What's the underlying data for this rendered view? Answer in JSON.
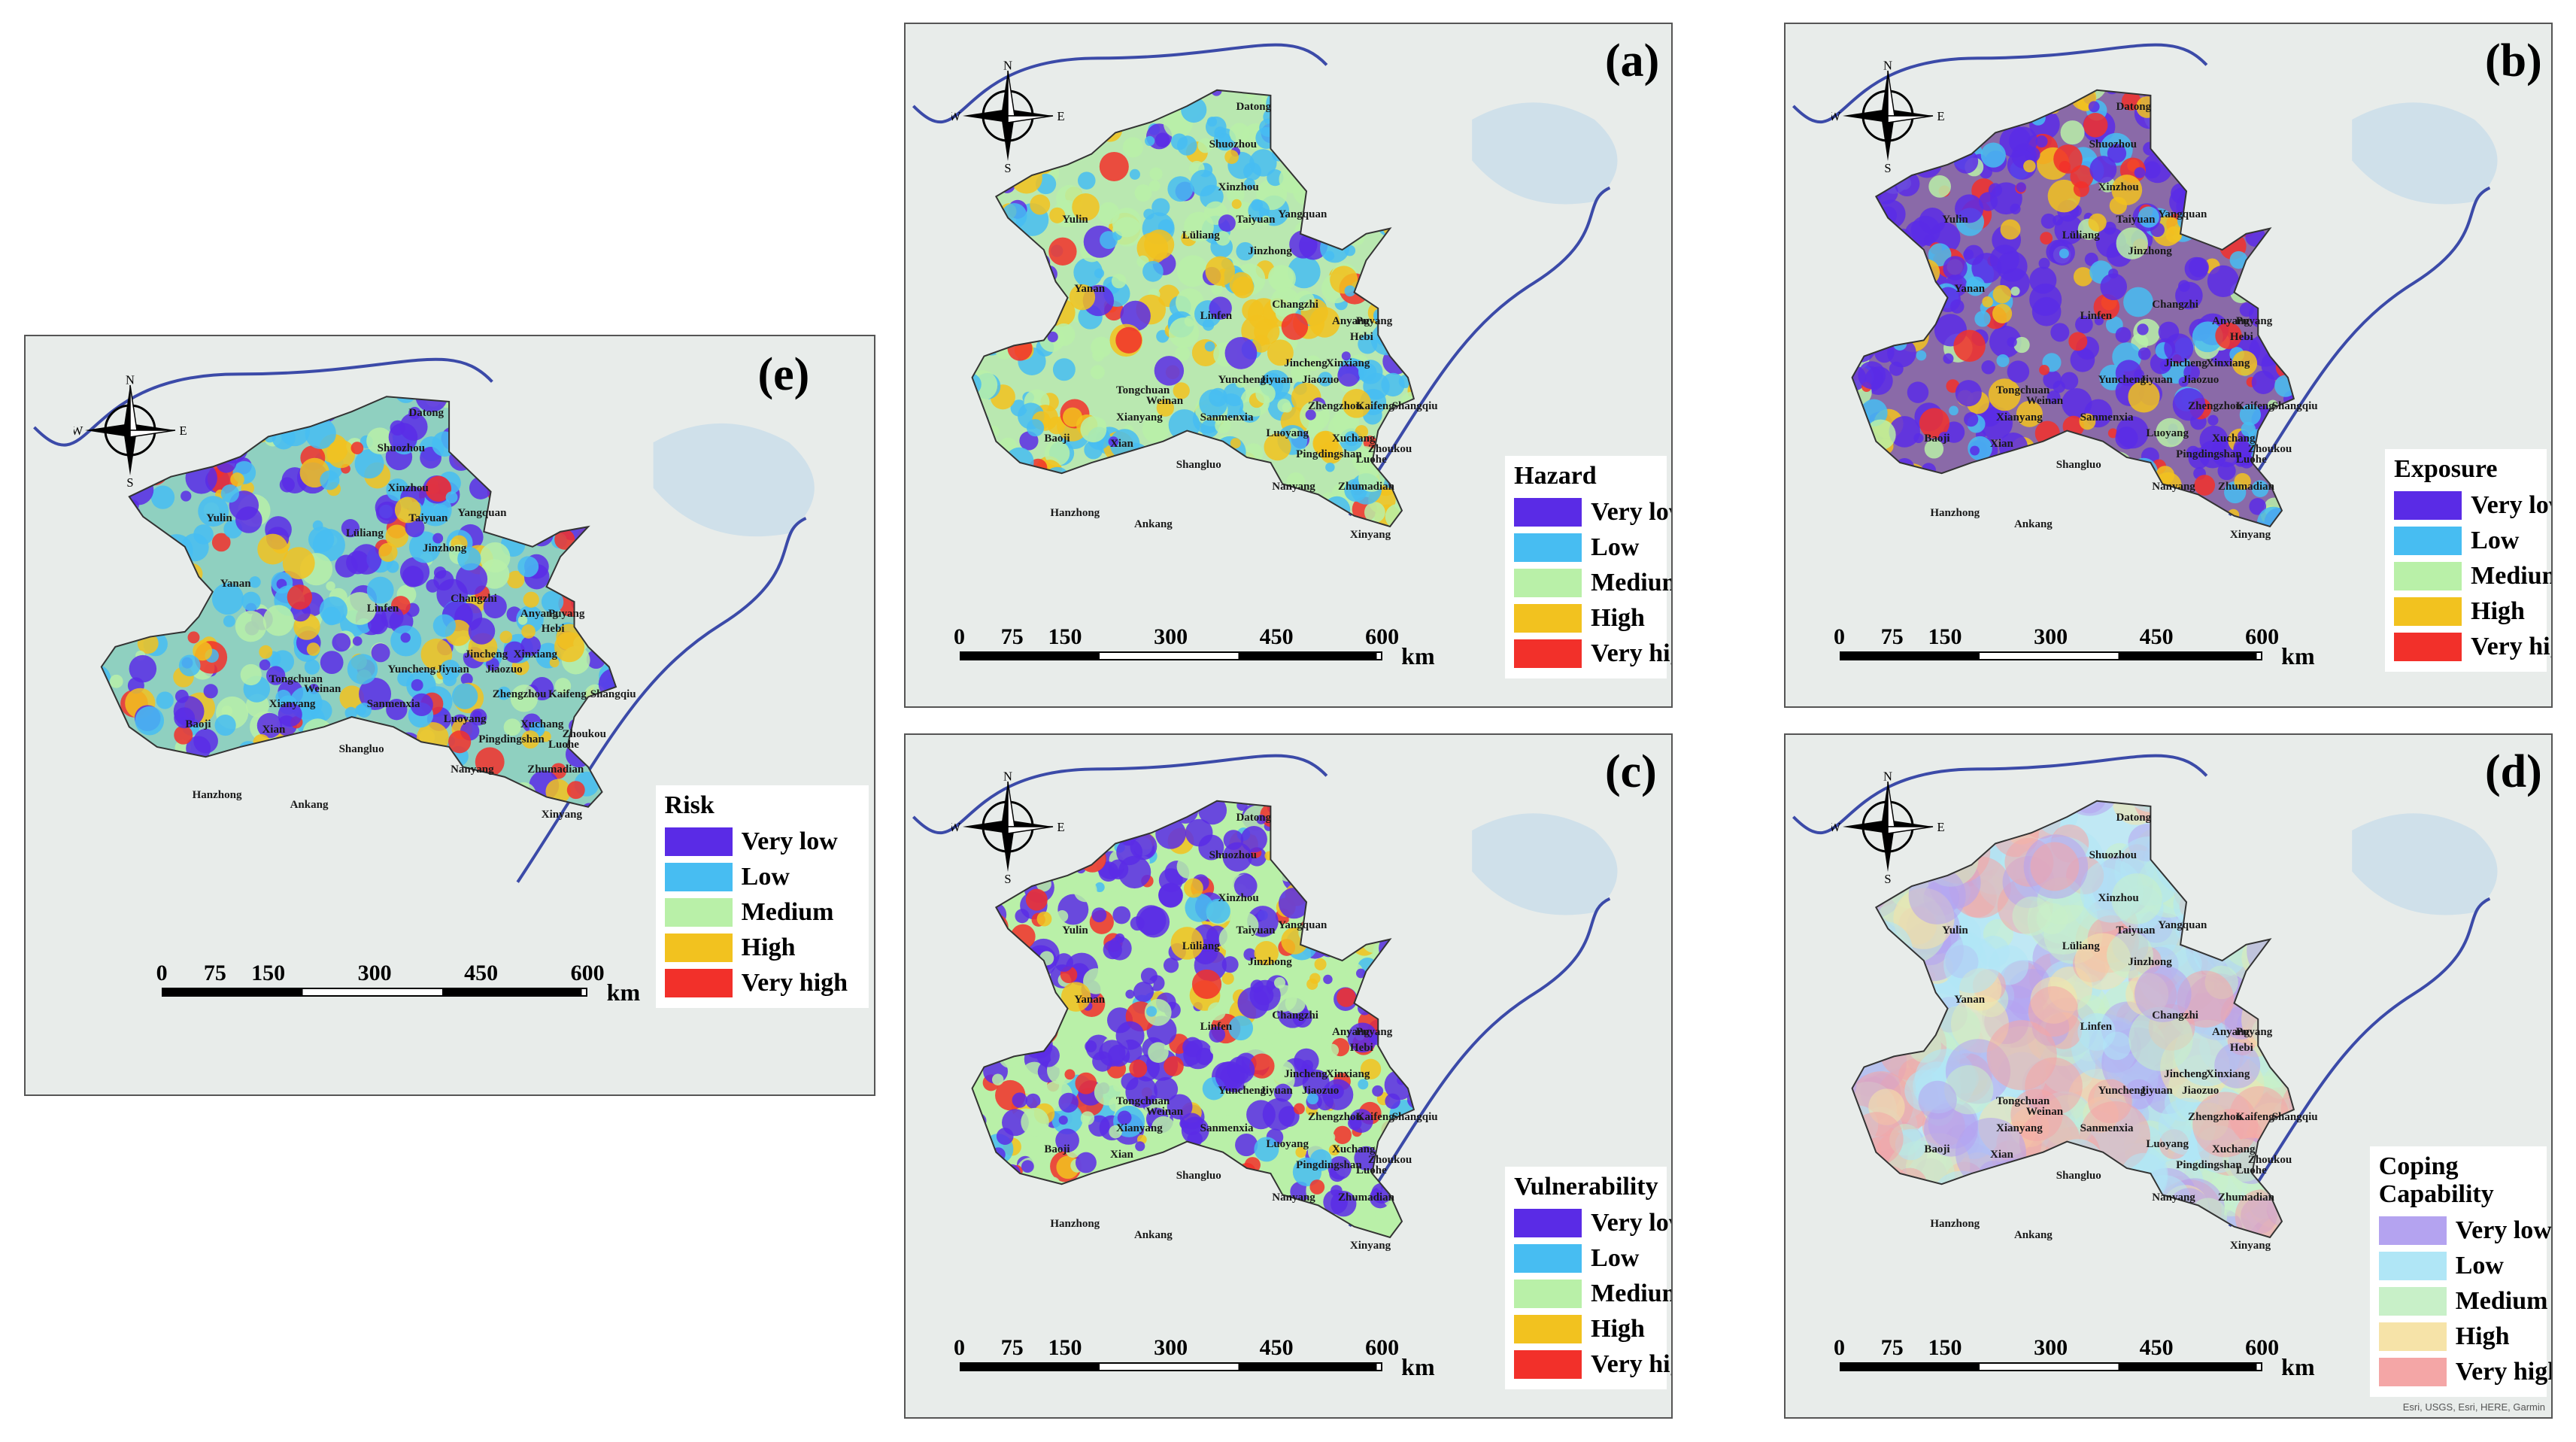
{
  "compass": {
    "n": "N",
    "s": "S",
    "e": "E",
    "w": "W"
  },
  "scale": {
    "ticks": [
      "0",
      "75",
      "150",
      "300",
      "450",
      "600"
    ],
    "unit": "km"
  },
  "panels": {
    "e": {
      "label": "(e)",
      "legend_title": "Risk",
      "items": [
        "Very low",
        "Low",
        "Medium",
        "High",
        "Very high"
      ],
      "colors": [
        "#5a2be6",
        "#47bdf2",
        "#b9f0a8",
        "#f2c21f",
        "#f2302a"
      ]
    },
    "a": {
      "label": "(a)",
      "legend_title": "Hazard",
      "items": [
        "Very low",
        "Low",
        "Medium",
        "High",
        "Very high"
      ],
      "colors": [
        "#5a2be6",
        "#47bdf2",
        "#b9f0a8",
        "#f2c21f",
        "#f2302a"
      ]
    },
    "b": {
      "label": "(b)",
      "legend_title": "Exposure",
      "items": [
        "Very low",
        "Low",
        "Medium",
        "High",
        "Very high"
      ],
      "colors": [
        "#5a2be6",
        "#47bdf2",
        "#b9f0a8",
        "#f2c21f",
        "#f2302a"
      ]
    },
    "c": {
      "label": "(c)",
      "legend_title": "Vulnerability",
      "items": [
        "Very low",
        "Low",
        "Medium",
        "High",
        "Very high"
      ],
      "colors": [
        "#5a2be6",
        "#47bdf2",
        "#b9f0a8",
        "#f2c21f",
        "#f2302a"
      ]
    },
    "d": {
      "label": "(d)",
      "legend_title": "Coping Capability",
      "items": [
        "Very low",
        "Low",
        "Medium",
        "High",
        "Very high"
      ],
      "colors": [
        "#b4a3f0",
        "#b0e6f6",
        "#c8f0c8",
        "#f6e3a8",
        "#f4a6a6"
      ]
    }
  },
  "cities": [
    "Datong",
    "Shuozhou",
    "Xinzhou",
    "Yulin",
    "Taiyuan",
    "Yangquan",
    "Lüliang",
    "Jinzhong",
    "Yanan",
    "Changzhi",
    "Linfen",
    "Anyang",
    "Puyang",
    "Hebi",
    "Jincheng",
    "Xinxiang",
    "Jiaozuo",
    "Yuncheng",
    "Jiyuan",
    "Tongchuan",
    "Weinan",
    "Zhengzhou",
    "Kaifeng",
    "Shangqiu",
    "Xianyang",
    "Sanmenxia",
    "Luoyang",
    "Xuchang",
    "Zhoukou",
    "Baoji",
    "Xian",
    "Pingdingshan",
    "Luohe",
    "Shangluo",
    "Nanyang",
    "Zhumadian",
    "Hanzhong",
    "Ankang",
    "Xinyang"
  ],
  "attribution": "Esri, USGS, Esri, HERE, Garmin"
}
